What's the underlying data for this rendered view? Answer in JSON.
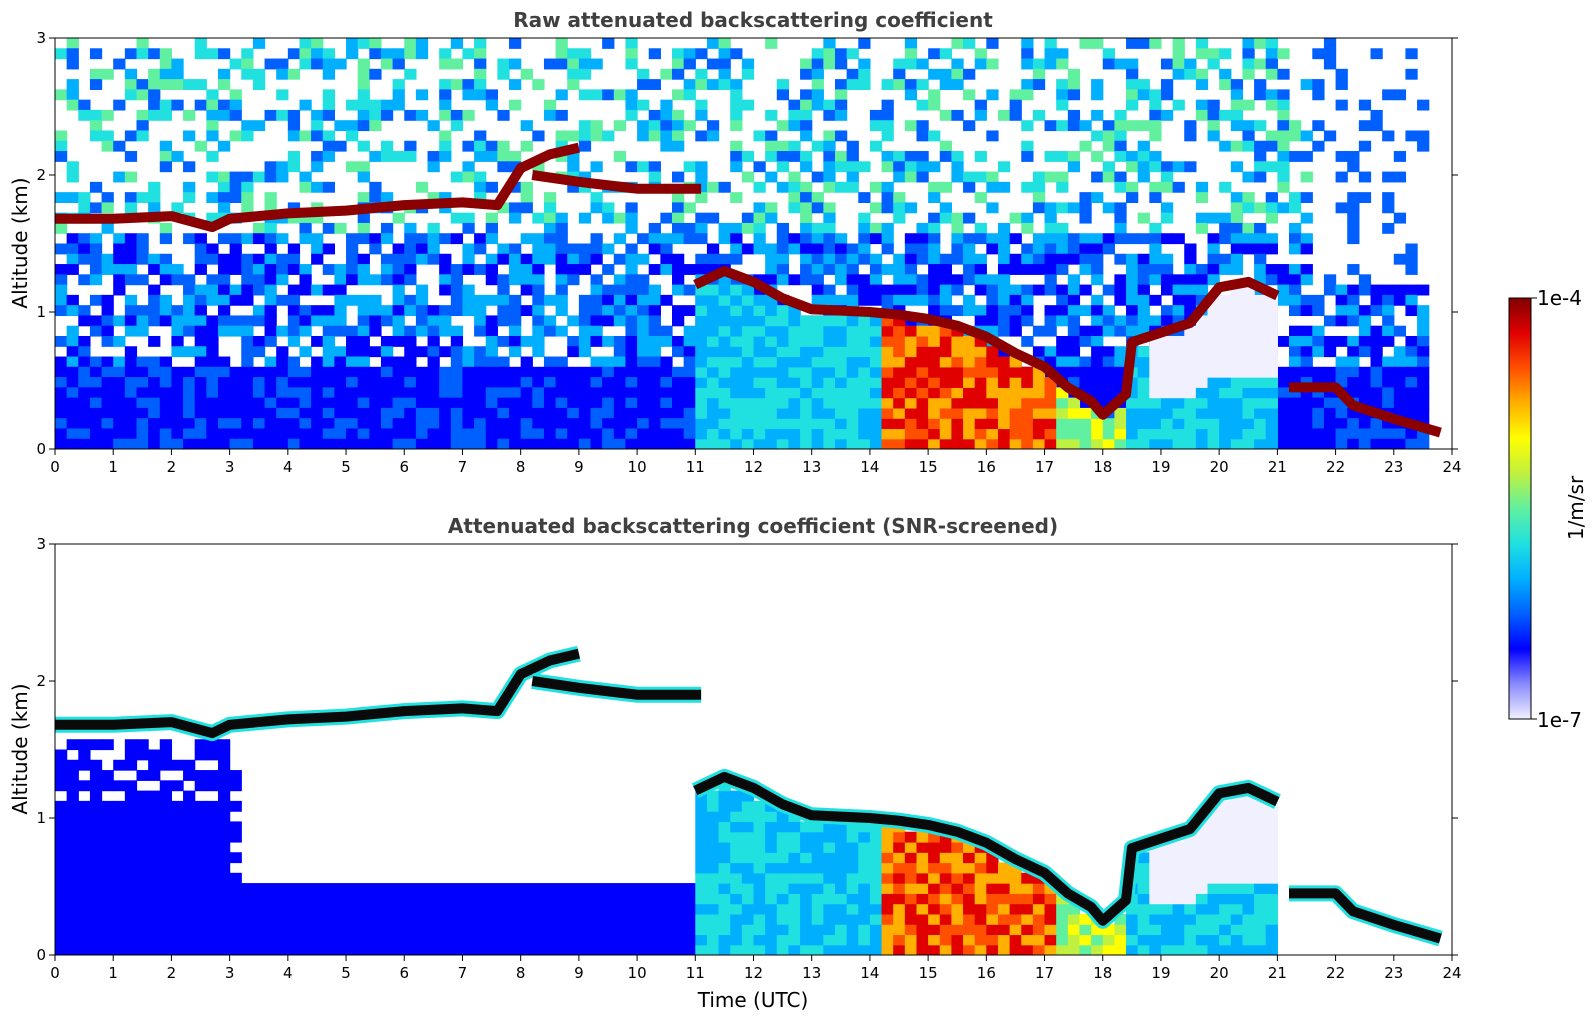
{
  "chart_data": [
    {
      "type": "heatmap",
      "title": "Raw attenuated backscattering coefficient",
      "xlabel": "",
      "ylabel": "Altitude (km)",
      "xlim": [
        0,
        24
      ],
      "ylim": [
        0,
        3
      ],
      "xticks": [
        0,
        1,
        2,
        3,
        4,
        5,
        6,
        7,
        8,
        9,
        10,
        11,
        12,
        13,
        14,
        15,
        16,
        17,
        18,
        19,
        20,
        21,
        22,
        23,
        24
      ],
      "yticks": [
        0,
        1,
        2,
        3
      ],
      "screened": false,
      "layers": [
        {
          "name": "cloud-top-layer",
          "points": [
            [
              0,
              1.68
            ],
            [
              1,
              1.68
            ],
            [
              2,
              1.7
            ],
            [
              2.7,
              1.62
            ],
            [
              3,
              1.68
            ],
            [
              4,
              1.72
            ],
            [
              5,
              1.74
            ],
            [
              6,
              1.78
            ],
            [
              7,
              1.8
            ],
            [
              7.6,
              1.78
            ],
            [
              8,
              2.05
            ],
            [
              8.5,
              2.15
            ],
            [
              9,
              2.2
            ]
          ]
        },
        {
          "name": "upper-layer",
          "points": [
            [
              8.2,
              2.0
            ],
            [
              9,
              1.95
            ],
            [
              9.6,
              1.92
            ],
            [
              10,
              1.9
            ],
            [
              10.6,
              1.9
            ],
            [
              11.1,
              1.9
            ]
          ]
        },
        {
          "name": "boundary-layer-top",
          "points": [
            [
              11,
              1.2
            ],
            [
              11.5,
              1.3
            ],
            [
              12,
              1.22
            ],
            [
              12.5,
              1.1
            ],
            [
              13,
              1.02
            ],
            [
              14,
              1.0
            ],
            [
              14.5,
              0.98
            ],
            [
              15,
              0.95
            ],
            [
              15.5,
              0.9
            ],
            [
              16,
              0.82
            ],
            [
              16.5,
              0.7
            ],
            [
              17,
              0.6
            ],
            [
              17.4,
              0.45
            ],
            [
              17.8,
              0.35
            ],
            [
              18,
              0.25
            ],
            [
              18.4,
              0.4
            ],
            [
              18.5,
              0.78
            ],
            [
              19,
              0.85
            ],
            [
              19.5,
              0.92
            ],
            [
              20,
              1.18
            ],
            [
              20.5,
              1.22
            ],
            [
              21,
              1.12
            ]
          ]
        },
        {
          "name": "low-layer",
          "points": [
            [
              21.2,
              0.45
            ],
            [
              22,
              0.45
            ],
            [
              22.3,
              0.32
            ],
            [
              23,
              0.22
            ],
            [
              23.8,
              0.12
            ]
          ]
        }
      ],
      "colorbar": {
        "min_label": "1e-7",
        "max_label": "1e-4",
        "unit": "1/m/sr"
      }
    },
    {
      "type": "heatmap",
      "title": "Attenuated backscattering coefficient (SNR-screened)",
      "xlabel": "Time (UTC)",
      "ylabel": "Altitude (km)",
      "xlim": [
        0,
        24
      ],
      "ylim": [
        0,
        3
      ],
      "xticks": [
        0,
        1,
        2,
        3,
        4,
        5,
        6,
        7,
        8,
        9,
        10,
        11,
        12,
        13,
        14,
        15,
        16,
        17,
        18,
        19,
        20,
        21,
        22,
        23,
        24
      ],
      "yticks": [
        0,
        1,
        2,
        3
      ],
      "screened": true,
      "layers": [
        {
          "name": "cloud-top-layer",
          "points": [
            [
              0,
              1.68
            ],
            [
              1,
              1.68
            ],
            [
              2,
              1.7
            ],
            [
              2.7,
              1.62
            ],
            [
              3,
              1.68
            ],
            [
              4,
              1.72
            ],
            [
              5,
              1.74
            ],
            [
              6,
              1.78
            ],
            [
              7,
              1.8
            ],
            [
              7.6,
              1.78
            ],
            [
              8,
              2.05
            ],
            [
              8.5,
              2.15
            ],
            [
              9,
              2.2
            ]
          ]
        },
        {
          "name": "upper-layer",
          "points": [
            [
              8.2,
              2.0
            ],
            [
              9,
              1.95
            ],
            [
              9.6,
              1.92
            ],
            [
              10,
              1.9
            ],
            [
              10.6,
              1.9
            ],
            [
              11.1,
              1.9
            ]
          ]
        },
        {
          "name": "boundary-layer-top",
          "points": [
            [
              11,
              1.2
            ],
            [
              11.5,
              1.3
            ],
            [
              12,
              1.22
            ],
            [
              12.5,
              1.1
            ],
            [
              13,
              1.02
            ],
            [
              14,
              1.0
            ],
            [
              14.5,
              0.98
            ],
            [
              15,
              0.95
            ],
            [
              15.5,
              0.9
            ],
            [
              16,
              0.82
            ],
            [
              16.5,
              0.7
            ],
            [
              17,
              0.6
            ],
            [
              17.4,
              0.45
            ],
            [
              17.8,
              0.35
            ],
            [
              18,
              0.25
            ],
            [
              18.4,
              0.4
            ],
            [
              18.5,
              0.78
            ],
            [
              19,
              0.85
            ],
            [
              19.5,
              0.92
            ],
            [
              20,
              1.18
            ],
            [
              20.5,
              1.22
            ],
            [
              21,
              1.12
            ]
          ]
        },
        {
          "name": "low-layer",
          "points": [
            [
              21.2,
              0.45
            ],
            [
              22,
              0.45
            ],
            [
              22.3,
              0.32
            ],
            [
              23,
              0.22
            ],
            [
              23.8,
              0.12
            ]
          ]
        }
      ],
      "colorbar": {
        "min_label": "1e-7",
        "max_label": "1e-4",
        "unit": "1/m/sr"
      }
    }
  ],
  "colorbar": {
    "min_label": "1e-7",
    "max_label": "1e-4",
    "unit": "1/m/sr",
    "colormap": [
      "#f0f0ff",
      "#8a8aff",
      "#0000ff",
      "#0060ff",
      "#00b0ff",
      "#20e0e0",
      "#60f0a0",
      "#c0f040",
      "#ffff00",
      "#ffb000",
      "#ff5000",
      "#e00000",
      "#800000"
    ]
  },
  "colors": {
    "layer_raw": "#8b0000",
    "layer_screened": "#0a0a0a"
  }
}
